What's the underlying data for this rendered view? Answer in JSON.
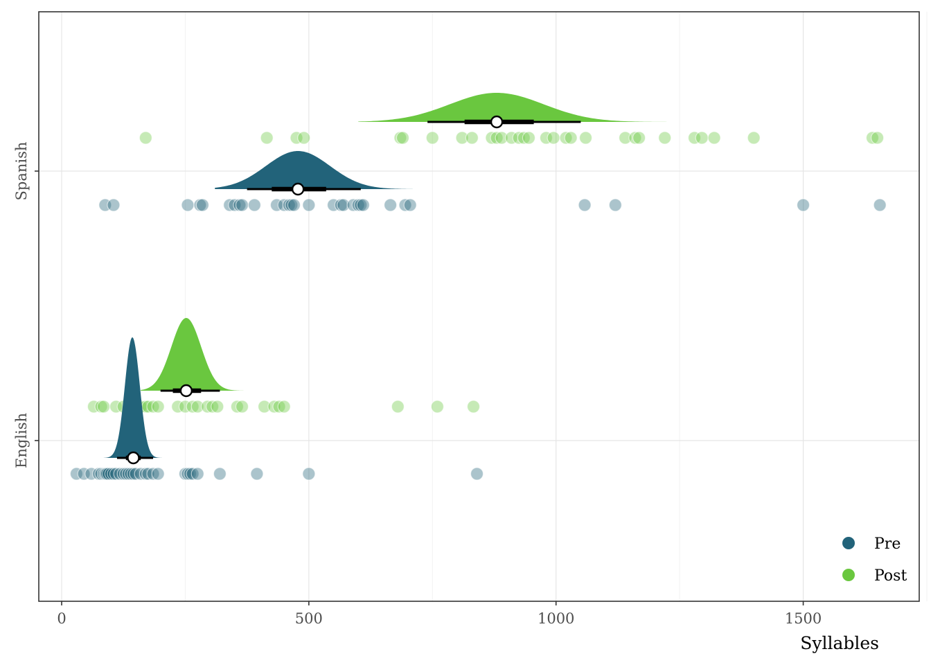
{
  "chart_data": {
    "type": "raincloud",
    "title": "",
    "xlabel": "Syllables",
    "ylabel": "",
    "xlim": [
      -45,
      1740
    ],
    "x_ticks": [
      0,
      500,
      1000,
      1500
    ],
    "x_tick_labels": [
      "0",
      "500",
      "1000",
      "1500"
    ],
    "y_categories": [
      "English",
      "Spanish"
    ],
    "grid": true,
    "legend_position": "bottom-right",
    "colors": {
      "Pre": "#22637A",
      "Post": "#6AC73F"
    },
    "series": [
      {
        "name": "Pre",
        "category": "English",
        "summary": {
          "median": 145,
          "ci66": [
            130,
            160
          ],
          "ci95": [
            112,
            185
          ]
        },
        "density": {
          "center": 143,
          "spread": 15,
          "range": [
            85,
            220
          ]
        },
        "points": [
          30,
          45,
          60,
          75,
          80,
          85,
          88,
          90,
          92,
          95,
          100,
          105,
          110,
          118,
          125,
          130,
          135,
          140,
          145,
          150,
          160,
          170,
          175,
          185,
          195,
          250,
          255,
          260,
          265,
          275,
          320,
          395,
          500,
          840
        ]
      },
      {
        "name": "Post",
        "category": "English",
        "summary": {
          "median": 252,
          "ci66": [
            225,
            282
          ],
          "ci95": [
            200,
            320
          ]
        },
        "density": {
          "center": 252,
          "spread": 30,
          "range": [
            160,
            390
          ]
        },
        "points": [
          65,
          80,
          85,
          110,
          125,
          150,
          160,
          170,
          175,
          185,
          195,
          235,
          250,
          265,
          275,
          295,
          305,
          315,
          355,
          365,
          410,
          430,
          440,
          450,
          680,
          760,
          833
        ]
      },
      {
        "name": "Pre",
        "category": "Spanish",
        "summary": {
          "median": 478,
          "ci66": [
            425,
            535
          ],
          "ci95": [
            375,
            605
          ]
        },
        "density": {
          "center": 478,
          "spread": 65,
          "range": [
            310,
            710
          ]
        },
        "points": [
          88,
          105,
          255,
          280,
          285,
          340,
          350,
          360,
          365,
          390,
          435,
          450,
          460,
          465,
          470,
          500,
          550,
          565,
          570,
          590,
          600,
          605,
          610,
          665,
          695,
          705,
          1058,
          1120,
          1500,
          1655
        ]
      },
      {
        "name": "Post",
        "category": "Spanish",
        "summary": {
          "median": 880,
          "ci66": [
            815,
            955
          ],
          "ci95": [
            740,
            1050
          ]
        },
        "density": {
          "center": 880,
          "spread": 95,
          "range": [
            600,
            1290
          ]
        },
        "points": [
          170,
          415,
          475,
          490,
          685,
          690,
          750,
          810,
          830,
          870,
          880,
          890,
          910,
          925,
          935,
          945,
          980,
          995,
          1020,
          1030,
          1060,
          1140,
          1160,
          1168,
          1220,
          1280,
          1295,
          1320,
          1400,
          1640,
          1650
        ]
      }
    ],
    "legend": [
      {
        "label": "Pre",
        "color": "#22637A"
      },
      {
        "label": "Post",
        "color": "#6AC73F"
      }
    ]
  }
}
